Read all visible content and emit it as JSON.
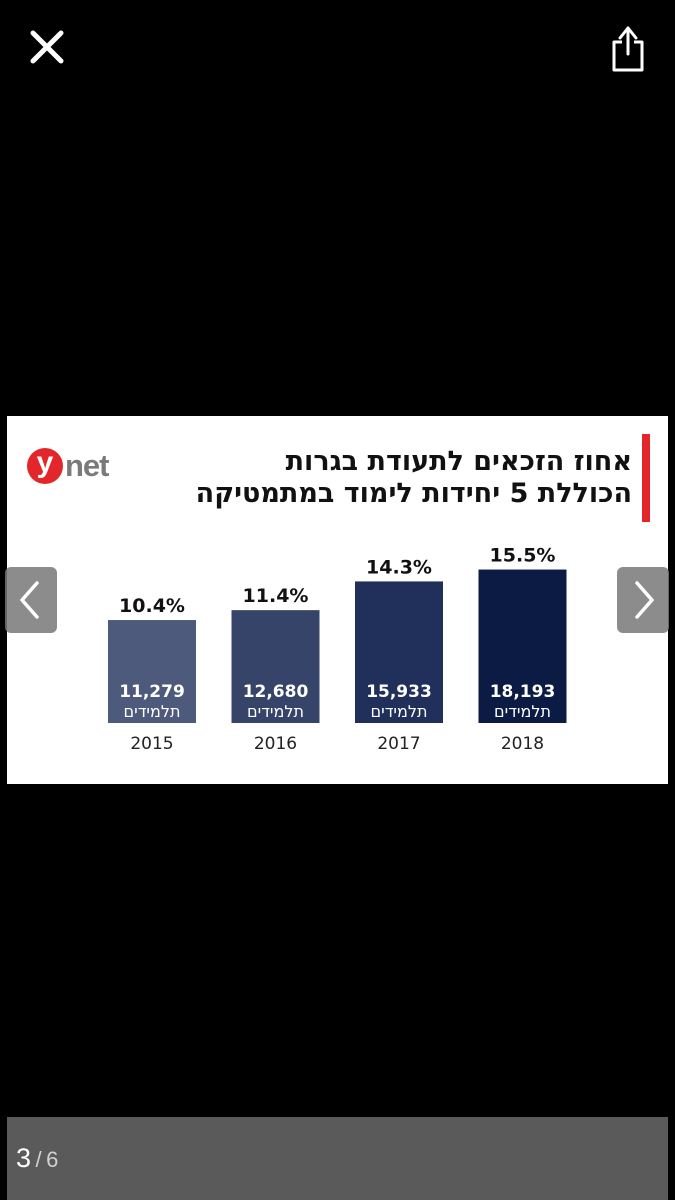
{
  "toolbar": {
    "close_icon": "close-icon",
    "share_icon": "share-icon"
  },
  "infographic": {
    "logo_letter": "y",
    "logo_text": "net",
    "title_line1": "אחוז הזכאים לתעודת בגרות",
    "title_line2": "הכוללת 5 יחידות לימוד במתמטיקה",
    "accent_color": "#e3262a"
  },
  "chart_data": {
    "type": "bar",
    "categories": [
      "2015",
      "2016",
      "2017",
      "2018"
    ],
    "values": [
      10.4,
      11.4,
      14.3,
      15.5
    ],
    "value_labels": [
      "10.4%",
      "11.4%",
      "14.3%",
      "15.5%"
    ],
    "counts": [
      "11,279",
      "12,680",
      "15,933",
      "18,193"
    ],
    "count_unit": "תלמידים",
    "colors": [
      "#4e5a7c",
      "#364469",
      "#21305a",
      "#0c1b44"
    ],
    "title": "אחוז הזכאים לתעודת בגרות הכוללת 5 יחידות לימוד במתמטיקה",
    "xlabel": "",
    "ylabel": "",
    "ylim": [
      0,
      16
    ],
    "grid": false
  },
  "navigation": {
    "prev_icon": "chevron-left-icon",
    "next_icon": "chevron-right-icon"
  },
  "pager": {
    "current": "3",
    "separator": "/",
    "total": "6"
  }
}
